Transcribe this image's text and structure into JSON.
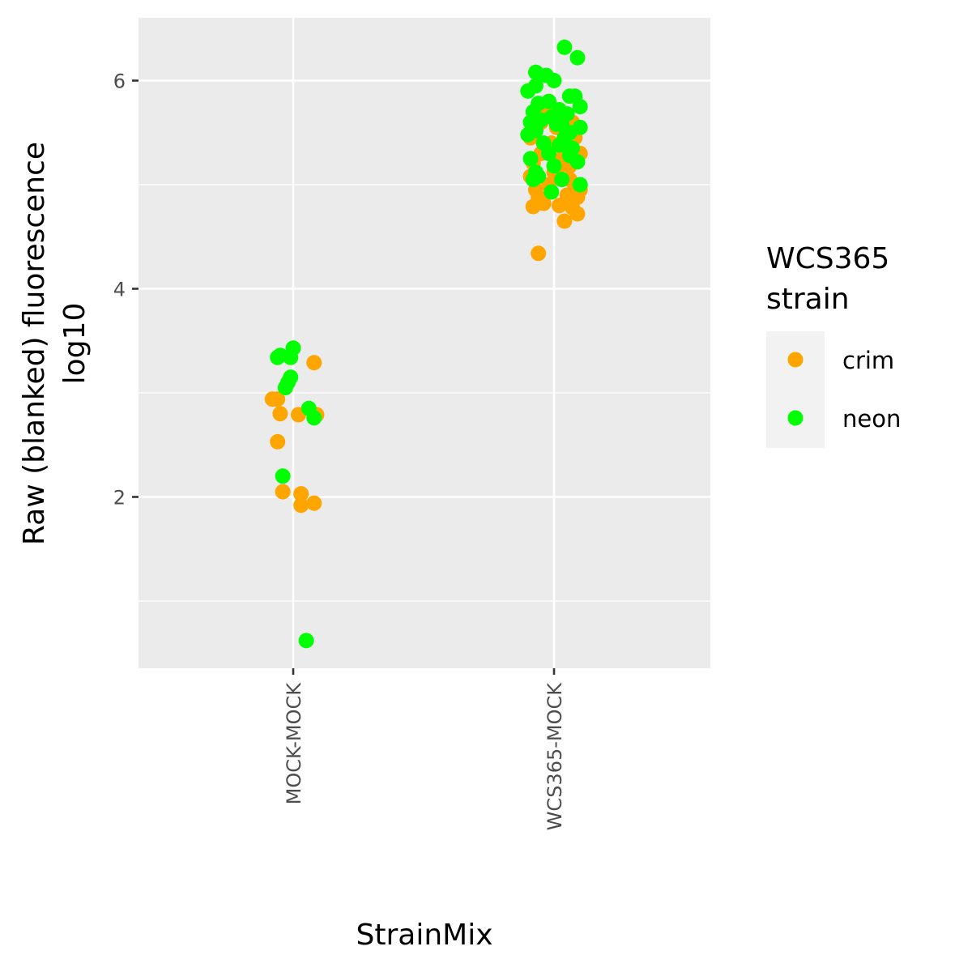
{
  "chart_data": {
    "type": "scatter",
    "xlabel": "StrainMix",
    "ylabel": "Raw (blanked) fluorescence",
    "ylabel_line2": "log10",
    "categories": [
      "MOCK-MOCK",
      "WCS365-MOCK"
    ],
    "ylim": [
      0.45,
      6.6
    ],
    "y_ticks": [
      2,
      4,
      6
    ],
    "y_minor_ticks": [
      1,
      3,
      5
    ],
    "grid": true,
    "legend": {
      "title_line1": "WCS365",
      "title_line2": "strain",
      "position": "right",
      "entries": [
        {
          "label": "crim",
          "color": "#FFA500"
        },
        {
          "label": "neon",
          "color": "#00FF00"
        }
      ]
    },
    "series": [
      {
        "name": "crim",
        "color": "#FFA500",
        "points": [
          {
            "x": "MOCK-MOCK",
            "jitter": -0.08,
            "y": 2.94
          },
          {
            "x": "MOCK-MOCK",
            "jitter": -0.06,
            "y": 2.94
          },
          {
            "x": "MOCK-MOCK",
            "jitter": -0.05,
            "y": 2.8
          },
          {
            "x": "MOCK-MOCK",
            "jitter": -0.06,
            "y": 2.53
          },
          {
            "x": "MOCK-MOCK",
            "jitter": -0.04,
            "y": 2.05
          },
          {
            "x": "MOCK-MOCK",
            "jitter": 0.02,
            "y": 2.79
          },
          {
            "x": "MOCK-MOCK",
            "jitter": 0.03,
            "y": 2.03
          },
          {
            "x": "MOCK-MOCK",
            "jitter": 0.03,
            "y": 1.92
          },
          {
            "x": "MOCK-MOCK",
            "jitter": 0.08,
            "y": 1.94
          },
          {
            "x": "MOCK-MOCK",
            "jitter": 0.08,
            "y": 3.29
          },
          {
            "x": "MOCK-MOCK",
            "jitter": 0.09,
            "y": 2.79
          },
          {
            "x": "WCS365-MOCK",
            "jitter": -0.06,
            "y": 4.34
          },
          {
            "x": "WCS365-MOCK",
            "jitter": -0.08,
            "y": 4.79
          },
          {
            "x": "WCS365-MOCK",
            "jitter": -0.04,
            "y": 4.82
          },
          {
            "x": "WCS365-MOCK",
            "jitter": -0.06,
            "y": 4.88
          },
          {
            "x": "WCS365-MOCK",
            "jitter": -0.09,
            "y": 5.08
          },
          {
            "x": "WCS365-MOCK",
            "jitter": -0.08,
            "y": 5.21
          },
          {
            "x": "WCS365-MOCK",
            "jitter": -0.05,
            "y": 5.3
          },
          {
            "x": "WCS365-MOCK",
            "jitter": -0.09,
            "y": 5.45
          },
          {
            "x": "WCS365-MOCK",
            "jitter": -0.02,
            "y": 5.0
          },
          {
            "x": "WCS365-MOCK",
            "jitter": 0.0,
            "y": 5.12
          },
          {
            "x": "WCS365-MOCK",
            "jitter": -0.01,
            "y": 5.4
          },
          {
            "x": "WCS365-MOCK",
            "jitter": 0.01,
            "y": 5.55
          },
          {
            "x": "WCS365-MOCK",
            "jitter": 0.02,
            "y": 4.8
          },
          {
            "x": "WCS365-MOCK",
            "jitter": 0.04,
            "y": 4.65
          },
          {
            "x": "WCS365-MOCK",
            "jitter": 0.05,
            "y": 4.9
          },
          {
            "x": "WCS365-MOCK",
            "jitter": 0.03,
            "y": 5.25
          },
          {
            "x": "WCS365-MOCK",
            "jitter": 0.06,
            "y": 5.05
          },
          {
            "x": "WCS365-MOCK",
            "jitter": 0.07,
            "y": 4.78
          },
          {
            "x": "WCS365-MOCK",
            "jitter": 0.09,
            "y": 4.72
          },
          {
            "x": "WCS365-MOCK",
            "jitter": 0.09,
            "y": 4.88
          },
          {
            "x": "WCS365-MOCK",
            "jitter": 0.1,
            "y": 5.3
          },
          {
            "x": "WCS365-MOCK",
            "jitter": 0.08,
            "y": 5.45
          },
          {
            "x": "WCS365-MOCK",
            "jitter": 0.07,
            "y": 5.6
          },
          {
            "x": "WCS365-MOCK",
            "jitter": 0.05,
            "y": 5.55
          },
          {
            "x": "WCS365-MOCK",
            "jitter": -0.03,
            "y": 5.7
          },
          {
            "x": "WCS365-MOCK",
            "jitter": 0.02,
            "y": 5.18
          },
          {
            "x": "WCS365-MOCK",
            "jitter": -0.07,
            "y": 4.95
          },
          {
            "x": "WCS365-MOCK",
            "jitter": 0.08,
            "y": 5.0
          },
          {
            "x": "WCS365-MOCK",
            "jitter": 0.06,
            "y": 5.18
          },
          {
            "x": "WCS365-MOCK",
            "jitter": -0.05,
            "y": 5.6
          },
          {
            "x": "WCS365-MOCK",
            "jitter": 0.1,
            "y": 4.95
          }
        ]
      },
      {
        "name": "neon",
        "color": "#00FF00",
        "points": [
          {
            "x": "MOCK-MOCK",
            "jitter": -0.06,
            "y": 3.34
          },
          {
            "x": "MOCK-MOCK",
            "jitter": -0.05,
            "y": 3.36
          },
          {
            "x": "MOCK-MOCK",
            "jitter": -0.01,
            "y": 3.34
          },
          {
            "x": "MOCK-MOCK",
            "jitter": 0.0,
            "y": 3.43
          },
          {
            "x": "MOCK-MOCK",
            "jitter": -0.03,
            "y": 3.05
          },
          {
            "x": "MOCK-MOCK",
            "jitter": -0.02,
            "y": 3.1
          },
          {
            "x": "MOCK-MOCK",
            "jitter": -0.01,
            "y": 3.15
          },
          {
            "x": "MOCK-MOCK",
            "jitter": -0.04,
            "y": 2.2
          },
          {
            "x": "MOCK-MOCK",
            "jitter": 0.06,
            "y": 2.85
          },
          {
            "x": "MOCK-MOCK",
            "jitter": 0.08,
            "y": 2.76
          },
          {
            "x": "MOCK-MOCK",
            "jitter": 0.05,
            "y": 0.62
          },
          {
            "x": "WCS365-MOCK",
            "jitter": 0.04,
            "y": 6.32
          },
          {
            "x": "WCS365-MOCK",
            "jitter": 0.09,
            "y": 6.22
          },
          {
            "x": "WCS365-MOCK",
            "jitter": -0.07,
            "y": 6.08
          },
          {
            "x": "WCS365-MOCK",
            "jitter": -0.03,
            "y": 6.05
          },
          {
            "x": "WCS365-MOCK",
            "jitter": 0.0,
            "y": 6.0
          },
          {
            "x": "WCS365-MOCK",
            "jitter": -0.07,
            "y": 5.95
          },
          {
            "x": "WCS365-MOCK",
            "jitter": -0.1,
            "y": 5.9
          },
          {
            "x": "WCS365-MOCK",
            "jitter": 0.06,
            "y": 5.85
          },
          {
            "x": "WCS365-MOCK",
            "jitter": 0.08,
            "y": 5.85
          },
          {
            "x": "WCS365-MOCK",
            "jitter": -0.02,
            "y": 5.8
          },
          {
            "x": "WCS365-MOCK",
            "jitter": -0.06,
            "y": 5.78
          },
          {
            "x": "WCS365-MOCK",
            "jitter": 0.1,
            "y": 5.75
          },
          {
            "x": "WCS365-MOCK",
            "jitter": 0.02,
            "y": 5.72
          },
          {
            "x": "WCS365-MOCK",
            "jitter": -0.08,
            "y": 5.7
          },
          {
            "x": "WCS365-MOCK",
            "jitter": -0.01,
            "y": 5.65
          },
          {
            "x": "WCS365-MOCK",
            "jitter": -0.09,
            "y": 5.6
          },
          {
            "x": "WCS365-MOCK",
            "jitter": 0.01,
            "y": 5.58
          },
          {
            "x": "WCS365-MOCK",
            "jitter": 0.1,
            "y": 5.55
          },
          {
            "x": "WCS365-MOCK",
            "jitter": -0.07,
            "y": 5.52
          },
          {
            "x": "WCS365-MOCK",
            "jitter": 0.06,
            "y": 5.5
          },
          {
            "x": "WCS365-MOCK",
            "jitter": -0.1,
            "y": 5.48
          },
          {
            "x": "WCS365-MOCK",
            "jitter": 0.04,
            "y": 5.45
          },
          {
            "x": "WCS365-MOCK",
            "jitter": -0.04,
            "y": 5.4
          },
          {
            "x": "WCS365-MOCK",
            "jitter": 0.02,
            "y": 5.38
          },
          {
            "x": "WCS365-MOCK",
            "jitter": 0.07,
            "y": 5.35
          },
          {
            "x": "WCS365-MOCK",
            "jitter": -0.02,
            "y": 5.3
          },
          {
            "x": "WCS365-MOCK",
            "jitter": 0.06,
            "y": 5.28
          },
          {
            "x": "WCS365-MOCK",
            "jitter": -0.09,
            "y": 5.25
          },
          {
            "x": "WCS365-MOCK",
            "jitter": 0.09,
            "y": 5.22
          },
          {
            "x": "WCS365-MOCK",
            "jitter": 0.0,
            "y": 5.18
          },
          {
            "x": "WCS365-MOCK",
            "jitter": -0.07,
            "y": 5.12
          },
          {
            "x": "WCS365-MOCK",
            "jitter": -0.06,
            "y": 5.08
          },
          {
            "x": "WCS365-MOCK",
            "jitter": -0.08,
            "y": 5.05
          },
          {
            "x": "WCS365-MOCK",
            "jitter": 0.03,
            "y": 5.05
          },
          {
            "x": "WCS365-MOCK",
            "jitter": 0.1,
            "y": 5.0
          },
          {
            "x": "WCS365-MOCK",
            "jitter": -0.01,
            "y": 4.93
          },
          {
            "x": "WCS365-MOCK",
            "jitter": 0.05,
            "y": 5.68
          },
          {
            "x": "WCS365-MOCK",
            "jitter": -0.05,
            "y": 5.62
          },
          {
            "x": "WCS365-MOCK",
            "jitter": 0.03,
            "y": 5.58
          }
        ]
      }
    ]
  }
}
